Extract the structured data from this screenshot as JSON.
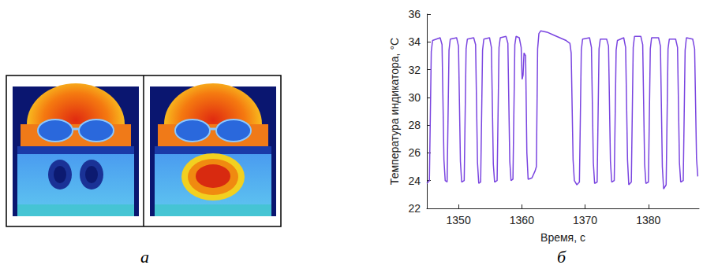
{
  "panel_labels": [
    "а",
    "б"
  ],
  "chart_data": {
    "type": "line",
    "x_label": "Время, с",
    "y_label": "Температура индикатора, °C",
    "color": "#7a45e0",
    "marker": "none",
    "grid": false,
    "xlim": [
      1345,
      1388
    ],
    "xticks": [
      1350,
      1360,
      1370,
      1380
    ],
    "ylim": [
      22,
      36
    ],
    "yticks": [
      22,
      24,
      26,
      28,
      30,
      32,
      34,
      36
    ],
    "x": [
      1345.0,
      1345.4,
      1345.7,
      1345.9,
      1347.1,
      1347.4,
      1347.7,
      1347.9,
      1348.2,
      1348.5,
      1348.7,
      1349.7,
      1350.0,
      1350.3,
      1350.5,
      1350.9,
      1351.2,
      1351.4,
      1352.4,
      1352.7,
      1353.0,
      1353.2,
      1353.5,
      1353.8,
      1354.0,
      1354.9,
      1355.2,
      1355.5,
      1355.7,
      1356.1,
      1356.4,
      1356.6,
      1357.5,
      1357.8,
      1358.1,
      1358.3,
      1358.6,
      1358.9,
      1359.1,
      1359.6,
      1359.9,
      1360.05,
      1360.2,
      1360.35,
      1360.6,
      1360.8,
      1361.0,
      1361.6,
      1362.1,
      1362.3,
      1362.5,
      1362.7,
      1363.0,
      1364.0,
      1365.0,
      1366.0,
      1367.0,
      1367.6,
      1367.8,
      1368.1,
      1368.3,
      1368.7,
      1369.1,
      1369.4,
      1369.6,
      1370.7,
      1371.0,
      1371.3,
      1371.5,
      1371.9,
      1372.2,
      1372.4,
      1373.4,
      1373.7,
      1374.0,
      1374.2,
      1374.6,
      1374.9,
      1375.1,
      1376.1,
      1376.4,
      1376.7,
      1376.9,
      1377.3,
      1377.6,
      1377.8,
      1378.8,
      1379.1,
      1379.4,
      1379.6,
      1380.0,
      1380.3,
      1380.5,
      1381.6,
      1381.9,
      1382.2,
      1382.4,
      1382.8,
      1383.1,
      1383.3,
      1384.3,
      1384.6,
      1384.9,
      1385.1,
      1385.5,
      1385.8,
      1386.0,
      1387.0,
      1387.3,
      1387.6,
      1387.8
    ],
    "values": [
      23.8,
      24.0,
      33.3,
      34.1,
      34.3,
      33.8,
      25.5,
      24.0,
      23.9,
      33.4,
      34.2,
      34.3,
      33.7,
      25.4,
      23.9,
      24.0,
      33.5,
      34.2,
      34.3,
      33.8,
      25.3,
      23.8,
      23.9,
      33.4,
      34.2,
      34.3,
      33.6,
      25.2,
      23.9,
      24.0,
      33.6,
      34.3,
      34.4,
      33.9,
      25.4,
      24.0,
      24.1,
      33.8,
      34.4,
      34.3,
      33.6,
      31.3,
      31.6,
      33.2,
      33.0,
      26.0,
      24.1,
      24.2,
      24.7,
      25.0,
      33.5,
      34.6,
      34.8,
      34.7,
      34.5,
      34.3,
      34.1,
      33.9,
      33.2,
      25.5,
      24.0,
      23.7,
      23.9,
      33.4,
      34.2,
      34.3,
      33.6,
      25.3,
      23.8,
      23.9,
      33.5,
      34.2,
      34.2,
      33.7,
      25.4,
      23.9,
      24.0,
      33.4,
      34.1,
      34.3,
      33.6,
      25.5,
      23.7,
      23.9,
      33.6,
      34.4,
      34.4,
      33.8,
      25.2,
      23.8,
      23.9,
      33.5,
      34.3,
      34.3,
      33.7,
      25.0,
      23.4,
      23.7,
      33.5,
      34.2,
      34.2,
      33.6,
      25.3,
      23.9,
      24.0,
      33.4,
      34.3,
      34.2,
      33.5,
      25.6,
      24.3
    ]
  }
}
